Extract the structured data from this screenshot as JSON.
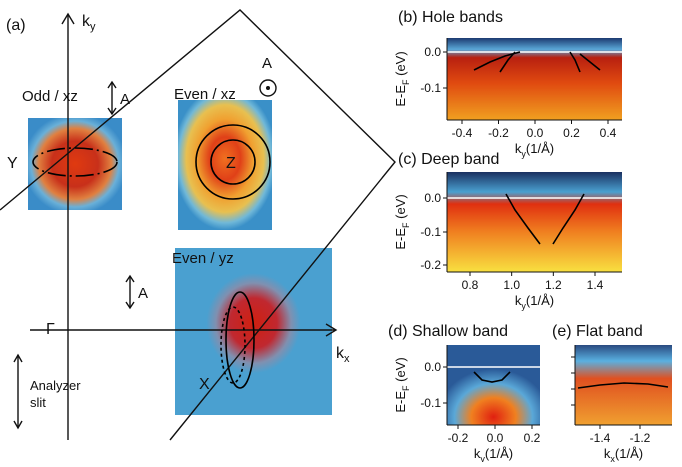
{
  "panel_a": {
    "label": "(a)",
    "ky": {
      "main": "k",
      "sub": "y"
    },
    "kx": {
      "main": "k",
      "sub": "x"
    },
    "odd_xz": "Odd / xz",
    "even_xz": "Even / xz",
    "even_yz": "Even / yz",
    "pol_1": "A",
    "pol_2": "A",
    "pol_3": "A",
    "Y": "Y",
    "Z": "Z",
    "X": "X",
    "gamma": "Γ",
    "analyzer": [
      "Analyzer",
      "slit"
    ]
  },
  "panels": [
    {
      "title": "(b) Hole bands",
      "ylabel": {
        "main": "E-E",
        "sub": "F",
        "rest": " (eV)"
      },
      "yticks": [
        "0.0",
        "-0.1"
      ],
      "xticks": [
        "-0.4",
        "-0.2",
        "0.0",
        "0.2",
        "0.4"
      ],
      "xlabel": {
        "main": "k",
        "sub": "y",
        "rest": "(1/Å)"
      }
    },
    {
      "title": "(c) Deep band",
      "ylabel": {
        "main": "E-E",
        "sub": "F",
        "rest": " (eV)"
      },
      "yticks": [
        "0.0",
        "-0.1",
        "-0.2"
      ],
      "xticks": [
        "0.8",
        "1.0",
        "1.2",
        "1.4"
      ],
      "xlabel": {
        "main": "k",
        "sub": "y",
        "rest": "(1/Å)"
      }
    },
    {
      "title": "(d) Shallow band",
      "ylabel": {
        "main": "E-E",
        "sub": "F",
        "rest": " (eV)"
      },
      "yticks": [
        "0.0",
        "-0.1"
      ],
      "xticks": [
        "-0.2",
        "0.0",
        "0.2"
      ],
      "xlabel": {
        "main": "k",
        "sub": "y",
        "rest": "(1/Å)"
      }
    },
    {
      "title": "(e) Flat band",
      "xticks": [
        "-1.4",
        "-1.2"
      ],
      "xlabel": {
        "main": "k",
        "sub": "x",
        "rest": "(1/Å)"
      }
    }
  ]
}
